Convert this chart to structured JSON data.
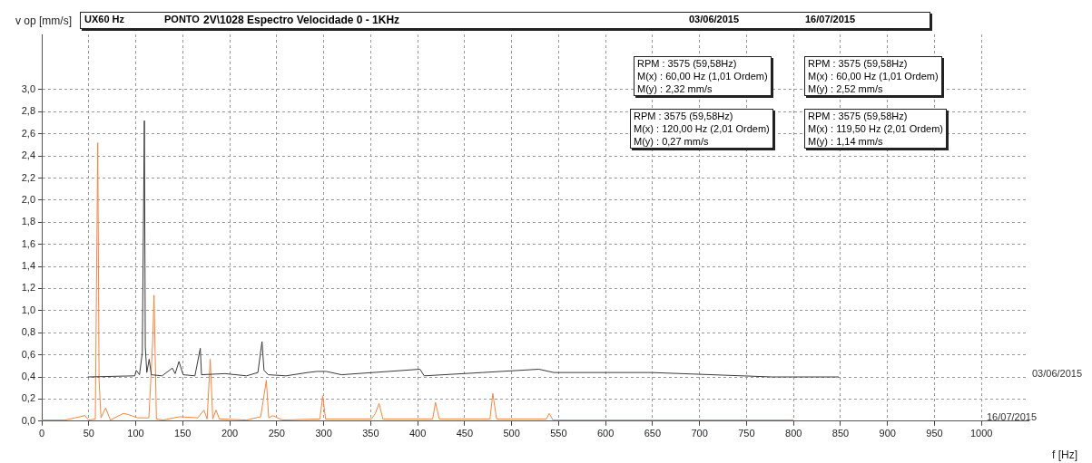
{
  "chart_data": {
    "type": "line",
    "title": "2V\\1028 Espectro Velocidade 0 - 1KHz",
    "subtitle": "UX60 Hz",
    "xlabel": "f [Hz]",
    "ylabel": "v op [mm/s]",
    "annotations": [
      "PONTO",
      "RPM : 3575 (59,58Hz)\nM(x) : 60,00 Hz (1,01 Ordem)\nM(y) : 2,32 mm/s",
      "RPM : 3575 (59,58Hz)\nM(x) : 60,00 Hz (1,01 Ordem)\nM(y) : 2,52 mm/s",
      "RPM : 3575 (59,58Hz)\nM(x) : 120,00 Hz (2,01 Ordem)\nM(y) : 0,27 mm/s",
      "RPM : 3575 (59,58Hz)\nM(x) : 119,50 Hz (2,01 Ordem)\nM(y) : 1,14 mm/s"
    ],
    "series": [
      {
        "name": "03/06/2015",
        "color": "#3a3a3a",
        "x": [
          49,
          99,
          100.6,
          104,
          107,
          109.2,
          110.2,
          111.8,
          114.3,
          116.6,
          128,
          139,
          142,
          146,
          150.5,
          163,
          168.7,
          170,
          195,
          218,
          230,
          234.4,
          236.5,
          241,
          260,
          283,
          293,
          302.6,
          319,
          402.5,
          407,
          469,
          529,
          545,
          649,
          777,
          848
        ],
        "values": [
          0.4,
          0.41,
          0.46,
          0.42,
          0.62,
          2.72,
          0.67,
          0.44,
          0.56,
          0.42,
          0.41,
          0.48,
          0.43,
          0.54,
          0.42,
          0.41,
          0.66,
          0.42,
          0.43,
          0.41,
          0.44,
          0.72,
          0.46,
          0.42,
          0.41,
          0.44,
          0.45,
          0.45,
          0.42,
          0.47,
          0.41,
          0.44,
          0.47,
          0.44,
          0.44,
          0.4,
          0.4
        ]
      },
      {
        "name": "16/07/2015",
        "color": "#f5853f",
        "x": [
          0,
          25,
          46,
          50,
          57,
          59.6,
          61,
          63,
          68,
          73,
          87,
          92,
          102,
          114,
          118,
          119.5,
          122,
          129,
          147,
          166,
          172.6,
          176,
          179.3,
          182,
          185.4,
          189,
          218,
          233,
          239,
          241.5,
          246,
          256,
          296,
          299,
          302,
          351,
          355,
          359,
          363,
          416,
          419,
          423,
          477,
          480,
          484,
          537,
          540,
          544,
          800
        ],
        "values": [
          0.01,
          0.01,
          0.05,
          0.01,
          0.02,
          2.52,
          0.37,
          0.03,
          0.12,
          0.01,
          0.07,
          0.06,
          0.03,
          0.03,
          0.71,
          1.14,
          0.02,
          0.01,
          0.04,
          0.03,
          0.1,
          0.02,
          0.56,
          0.02,
          0.1,
          0.02,
          0.01,
          0.04,
          0.37,
          0.03,
          0.05,
          0.01,
          0.02,
          0.23,
          0.02,
          0.02,
          0.07,
          0.16,
          0.02,
          0.02,
          0.17,
          0.02,
          0.02,
          0.25,
          0.02,
          0.02,
          0.07,
          0.01,
          0.01
        ]
      }
    ],
    "xlim": [
      0,
      1050
    ],
    "xticks": [
      0,
      50,
      100,
      150,
      200,
      250,
      300,
      350,
      400,
      450,
      500,
      550,
      600,
      650,
      700,
      750,
      800,
      850,
      900,
      950,
      1000
    ],
    "ylim": [
      0,
      3.5
    ],
    "yticks": [
      {
        "value": 0,
        "label": "0,0"
      },
      {
        "value": 0.2,
        "label": "0,2"
      },
      {
        "value": 0.4,
        "label": "0,4"
      },
      {
        "value": 0.6,
        "label": "0,6"
      },
      {
        "value": 0.8,
        "label": "0,8"
      },
      {
        "value": 1,
        "label": "1,0"
      },
      {
        "value": 1.2,
        "label": "1,2"
      },
      {
        "value": 1.4,
        "label": "1,4"
      },
      {
        "value": 1.6,
        "label": "1,6"
      },
      {
        "value": 1.8,
        "label": "1,8"
      },
      {
        "value": 2,
        "label": "2,0"
      },
      {
        "value": 2.2,
        "label": "2,2"
      },
      {
        "value": 2.4,
        "label": "2,4"
      },
      {
        "value": 2.6,
        "label": "2,6"
      },
      {
        "value": 2.8,
        "label": "2,8"
      },
      {
        "value": 3,
        "label": "3,0"
      }
    ],
    "grid": true,
    "marker": "none",
    "line_style": "solid"
  }
}
